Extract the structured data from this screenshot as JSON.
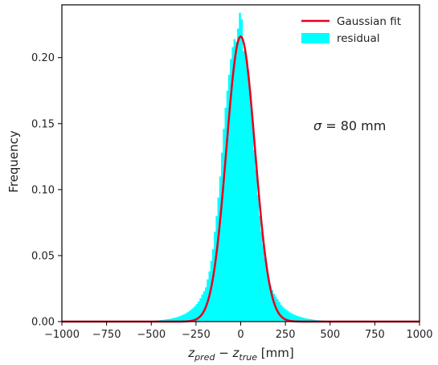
{
  "chart_data": {
    "type": "bar",
    "title": "",
    "xlabel_parts": {
      "a_main": "z",
      "a_sub": "pred",
      "minus": " − ",
      "b_main": "z",
      "b_sub": "true",
      "unit": " [mm]"
    },
    "ylabel": "Frequency",
    "xlim": [
      -1000,
      1000
    ],
    "ylim": [
      0,
      0.24
    ],
    "xticks": [
      -1000,
      -750,
      -500,
      -250,
      0,
      250,
      500,
      750,
      1000
    ],
    "xtick_labels": [
      "−1000",
      "−750",
      "−500",
      "−250",
      "0",
      "250",
      "500",
      "750",
      "1000"
    ],
    "yticks": [
      0.0,
      0.05,
      0.1,
      0.15,
      0.2
    ],
    "ytick_labels": [
      "0.00",
      "0.05",
      "0.10",
      "0.15",
      "0.20"
    ],
    "grid": false,
    "legend_position": "top-right",
    "annotation": {
      "symbol": "σ",
      "text": " = 80 mm"
    },
    "histogram": {
      "name": "residual",
      "color": "#00ffff",
      "bin_width": 10,
      "bin_centers": [
        -505,
        -495,
        -485,
        -475,
        -465,
        -455,
        -445,
        -435,
        -425,
        -415,
        -405,
        -395,
        -385,
        -375,
        -365,
        -355,
        -345,
        -335,
        -325,
        -315,
        -305,
        -295,
        -285,
        -275,
        -265,
        -255,
        -245,
        -235,
        -225,
        -215,
        -205,
        -195,
        -185,
        -175,
        -165,
        -155,
        -145,
        -135,
        -125,
        -115,
        -105,
        -95,
        -85,
        -75,
        -65,
        -55,
        -45,
        -35,
        -25,
        -15,
        -5,
        5,
        15,
        25,
        35,
        45,
        55,
        65,
        75,
        85,
        95,
        105,
        115,
        125,
        135,
        145,
        155,
        165,
        175,
        185,
        195,
        205,
        215,
        225,
        235,
        245,
        255,
        265,
        275,
        285,
        295,
        305,
        315,
        325,
        335,
        345,
        355,
        365,
        375,
        385,
        395,
        405,
        415,
        425,
        435,
        445,
        455,
        465,
        475,
        485,
        495,
        505
      ],
      "values": [
        0.0005,
        0.0006,
        0.0007,
        0.0008,
        0.0009,
        0.001,
        0.0012,
        0.0013,
        0.0015,
        0.0017,
        0.0019,
        0.0021,
        0.0024,
        0.0027,
        0.003,
        0.0034,
        0.0039,
        0.0044,
        0.005,
        0.0056,
        0.0064,
        0.0072,
        0.0082,
        0.0093,
        0.0105,
        0.0119,
        0.0135,
        0.0153,
        0.0177,
        0.0205,
        0.023,
        0.026,
        0.032,
        0.038,
        0.046,
        0.055,
        0.068,
        0.08,
        0.094,
        0.11,
        0.128,
        0.146,
        0.162,
        0.175,
        0.187,
        0.199,
        0.208,
        0.214,
        0.212,
        0.222,
        0.234,
        0.229,
        0.205,
        0.204,
        0.198,
        0.185,
        0.168,
        0.152,
        0.13,
        0.115,
        0.096,
        0.08,
        0.068,
        0.058,
        0.048,
        0.04,
        0.033,
        0.027,
        0.024,
        0.021,
        0.019,
        0.017,
        0.015,
        0.0128,
        0.0113,
        0.01,
        0.0089,
        0.0078,
        0.0069,
        0.0062,
        0.0055,
        0.0049,
        0.0043,
        0.0039,
        0.0035,
        0.0031,
        0.0027,
        0.0024,
        0.0021,
        0.0019,
        0.0017,
        0.0015,
        0.0013,
        0.0011,
        0.001,
        0.0009,
        0.0008,
        0.0007,
        0.0006,
        0.0005,
        0.0005,
        0.0004
      ]
    },
    "fit": {
      "name": "Gaussian fit",
      "color": "#e8001c",
      "type": "gaussian",
      "mu": 0,
      "sigma": 80,
      "amplitude": 0.216
    }
  }
}
